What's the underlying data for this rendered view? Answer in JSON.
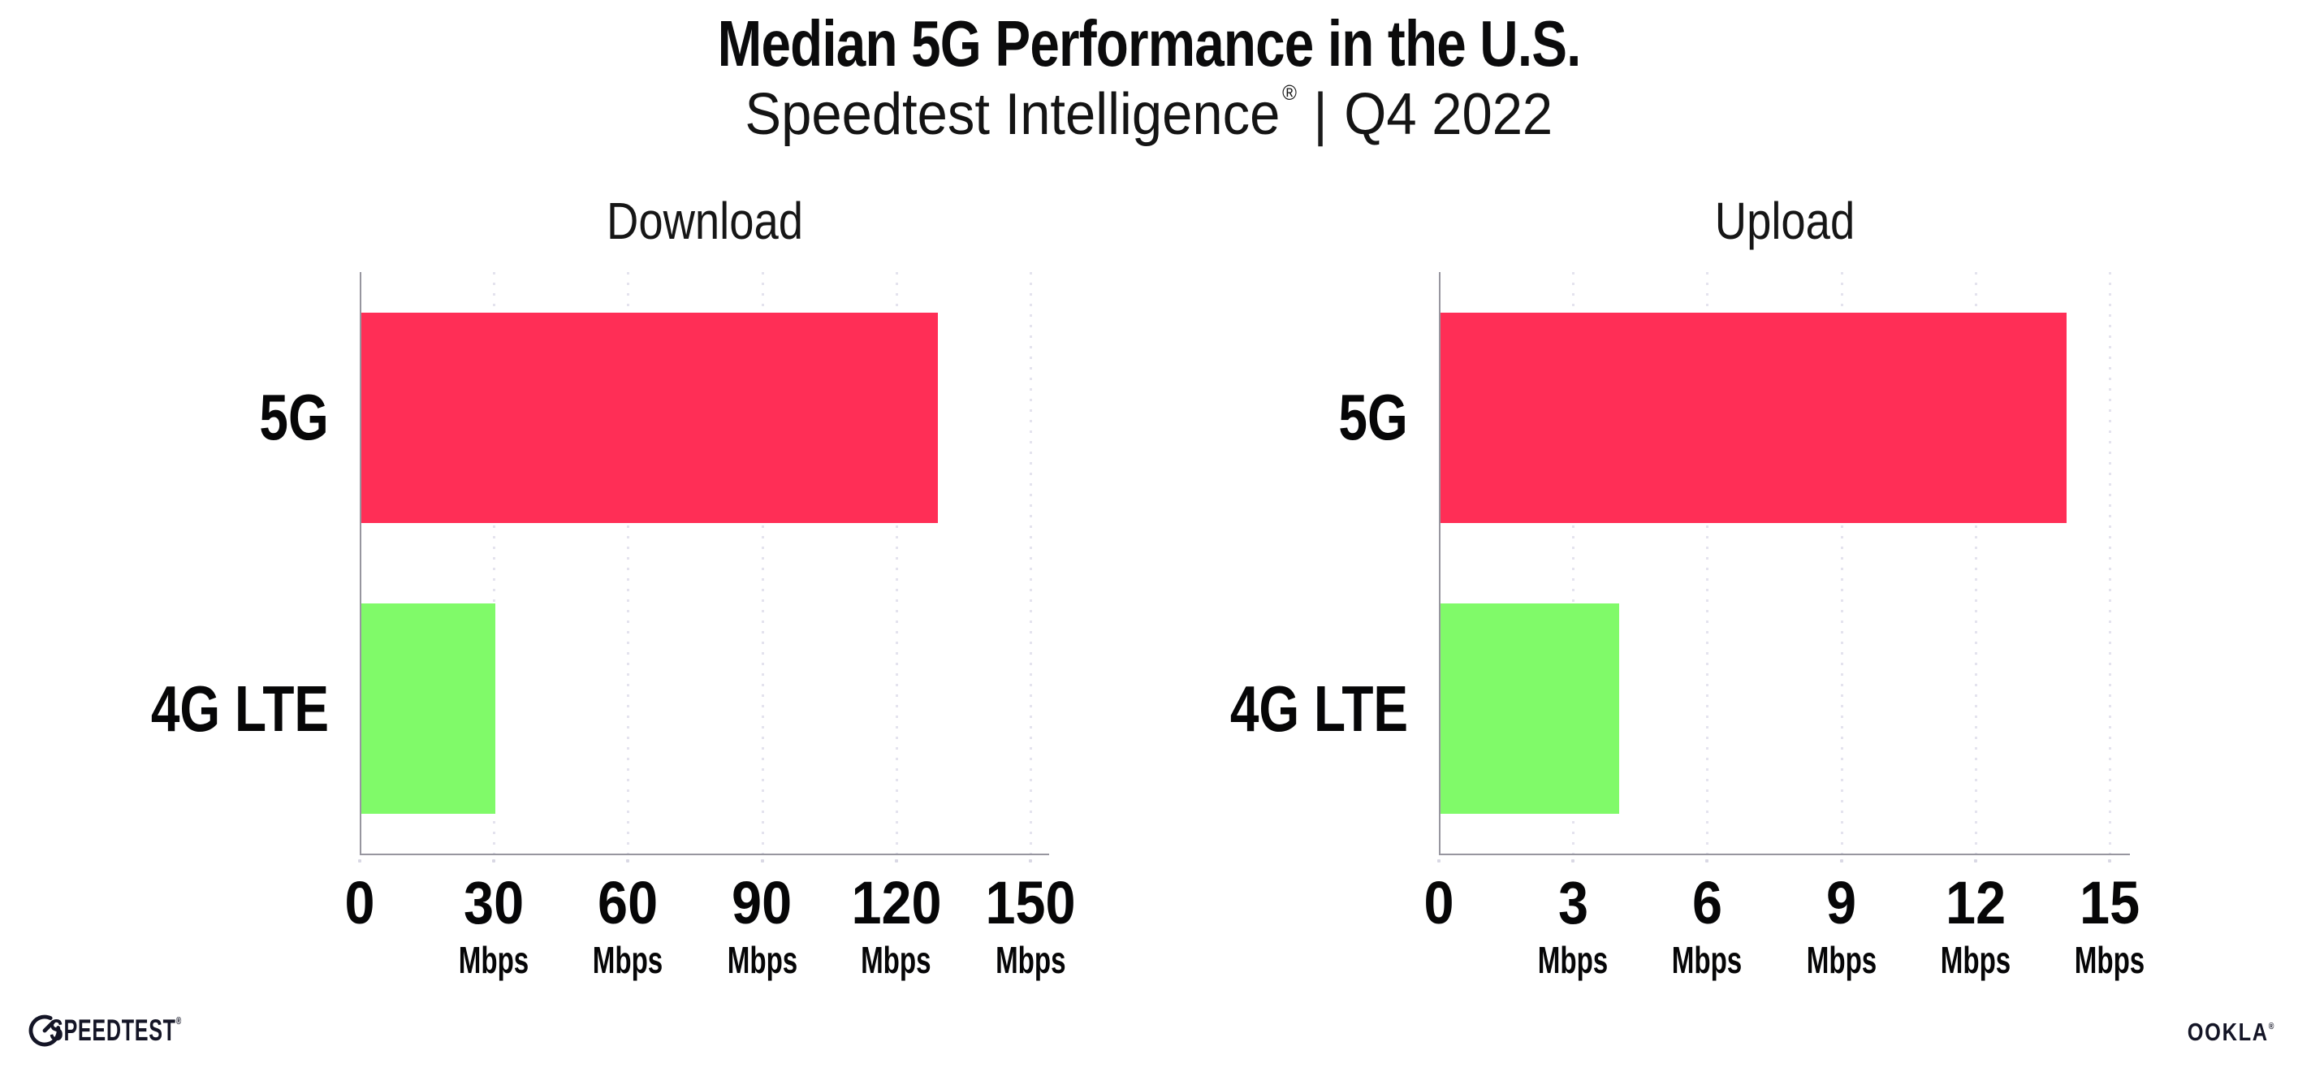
{
  "header": {
    "title": "Median 5G Performance in the U.S.",
    "subtitle_brand": "Speedtest Intelligence",
    "subtitle_reg": "®",
    "subtitle_divider": "|",
    "subtitle_period": "Q4 2022"
  },
  "footer": {
    "speedtest_logo_text": "SPEEDTEST",
    "speedtest_reg": "®",
    "ookla_logo_text": "OOKLA",
    "ookla_reg": "®"
  },
  "colors": {
    "bar_5g": "#FF2E56",
    "bar_4g": "#80FA69",
    "axis_line": "#97969F",
    "gridline": "#E4E3EE",
    "text": "#0B0B0C"
  },
  "chart_data": [
    {
      "type": "bar",
      "orientation": "horizontal",
      "title": "Download",
      "categories": [
        "5G",
        "4G LTE"
      ],
      "values": [
        129,
        30
      ],
      "unit": "Mbps",
      "xlim": [
        0,
        150
      ],
      "ticks": [
        0,
        30,
        60,
        90,
        120,
        150
      ],
      "grid": "vertical-dotted",
      "legend": "none",
      "series_colors": [
        "#FF2E56",
        "#80FA69"
      ]
    },
    {
      "type": "bar",
      "orientation": "horizontal",
      "title": "Upload",
      "categories": [
        "5G",
        "4G LTE"
      ],
      "values": [
        14,
        4
      ],
      "unit": "Mbps",
      "xlim": [
        0,
        15
      ],
      "ticks": [
        0,
        3,
        6,
        9,
        12,
        15
      ],
      "grid": "vertical-dotted",
      "legend": "none",
      "series_colors": [
        "#FF2E56",
        "#80FA69"
      ]
    }
  ]
}
